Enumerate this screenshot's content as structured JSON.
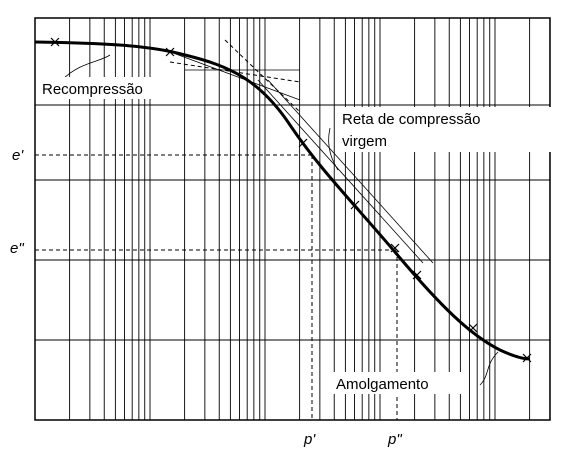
{
  "labels": {
    "recompression": "Recompressão",
    "virgin_line": [
      "Reta de compressão",
      "virgem"
    ],
    "e1": "e'",
    "e2": "e\"",
    "p1": "p'",
    "p2": "p\"",
    "remolded": "Amolgamento"
  }
}
